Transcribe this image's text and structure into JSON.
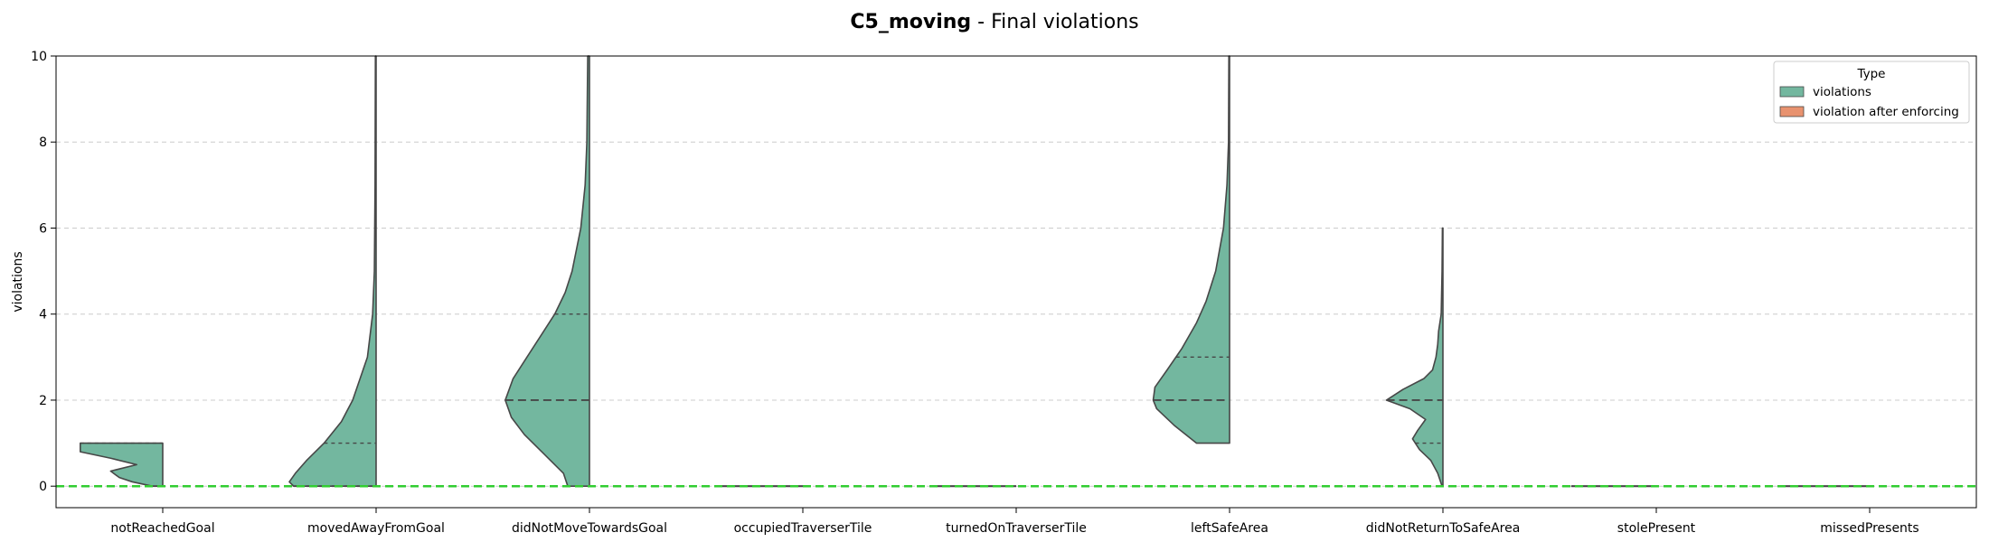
{
  "title": {
    "bold": "C5_moving",
    "rest": " - Final violations"
  },
  "colors": {
    "violations": "#73b79f",
    "after_enforcing": "#e8926f",
    "outline": "#474747",
    "zero_line": "#32cd32",
    "grid": "#cccccc"
  },
  "chart_data": {
    "type": "violin",
    "ylabel": "violations",
    "ylim": [
      -0.5,
      10
    ],
    "yticks": [
      0,
      2,
      4,
      6,
      8,
      10
    ],
    "grid": true,
    "categories": [
      "notReachedGoal",
      "movedAwayFromGoal",
      "didNotMoveTowardsGoal",
      "occupiedTraverserTile",
      "turnedOnTraverserTile",
      "leftSafeArea",
      "didNotReturnToSafeArea",
      "stolePresent",
      "missedPresents"
    ],
    "legend": {
      "title": "Type",
      "position": "top-right",
      "entries": [
        "violations",
        "violation after enforcing"
      ]
    },
    "reference_line": {
      "y": 0,
      "style": "dashed"
    },
    "series": [
      {
        "name": "violations",
        "side": "left",
        "violins": [
          {
            "min": 0,
            "max": 1,
            "median": 0,
            "quartiles": [
              0,
              1
            ],
            "profile": [
              [
                0,
                0.12
              ],
              [
                0.1,
                0.35
              ],
              [
                0.2,
                0.5
              ],
              [
                0.35,
                0.6
              ],
              [
                0.5,
                0.3
              ],
              [
                0.65,
                0.6
              ],
              [
                0.8,
                0.95
              ],
              [
                1,
                0.95
              ]
            ]
          },
          {
            "min": 0,
            "max": 10,
            "median": 0,
            "quartiles": [
              0,
              1
            ],
            "profile": [
              [
                0,
                0.95
              ],
              [
                0.1,
                1
              ],
              [
                0.3,
                0.93
              ],
              [
                0.6,
                0.8
              ],
              [
                1,
                0.6
              ],
              [
                1.5,
                0.4
              ],
              [
                2,
                0.27
              ],
              [
                3,
                0.1
              ],
              [
                4,
                0.04
              ],
              [
                5,
                0.02
              ],
              [
                7,
                0.012
              ],
              [
                10,
                0.008
              ]
            ]
          },
          {
            "min": 0,
            "max": 10,
            "median": 2,
            "quartiles": [
              2,
              4
            ],
            "profile": [
              [
                0,
                0.25
              ],
              [
                0.3,
                0.3
              ],
              [
                0.8,
                0.55
              ],
              [
                1.2,
                0.75
              ],
              [
                1.6,
                0.9
              ],
              [
                2,
                0.97
              ],
              [
                2.5,
                0.88
              ],
              [
                3,
                0.72
              ],
              [
                3.5,
                0.56
              ],
              [
                4,
                0.4
              ],
              [
                4.5,
                0.28
              ],
              [
                5,
                0.2
              ],
              [
                6,
                0.1
              ],
              [
                7,
                0.05
              ],
              [
                8,
                0.03
              ],
              [
                10,
                0.02
              ]
            ]
          },
          {
            "min": 0,
            "max": 0,
            "median": 0,
            "quartiles": [
              0,
              0
            ],
            "flat_width": 0.98
          },
          {
            "min": 0,
            "max": 0,
            "median": 0,
            "quartiles": [
              0,
              0
            ],
            "flat_width": 0.98
          },
          {
            "min": 1,
            "max": 10,
            "median": 2,
            "quartiles": [
              2,
              3
            ],
            "profile": [
              [
                1,
                0.38
              ],
              [
                1.4,
                0.63
              ],
              [
                1.8,
                0.84
              ],
              [
                2,
                0.88
              ],
              [
                2.3,
                0.86
              ],
              [
                2.7,
                0.72
              ],
              [
                3.2,
                0.55
              ],
              [
                3.8,
                0.38
              ],
              [
                4.3,
                0.27
              ],
              [
                5,
                0.16
              ],
              [
                6,
                0.07
              ],
              [
                7,
                0.03
              ],
              [
                8,
                0.012
              ],
              [
                10,
                0.008
              ]
            ]
          },
          {
            "min": 0,
            "max": 6,
            "median": 2,
            "quartiles": [
              1,
              2
            ],
            "profile": [
              [
                0,
                0.01
              ],
              [
                0.3,
                0.06
              ],
              [
                0.6,
                0.14
              ],
              [
                0.85,
                0.27
              ],
              [
                1.1,
                0.35
              ],
              [
                1.3,
                0.29
              ],
              [
                1.55,
                0.2
              ],
              [
                1.8,
                0.38
              ],
              [
                2,
                0.65
              ],
              [
                2.25,
                0.46
              ],
              [
                2.5,
                0.22
              ],
              [
                2.7,
                0.12
              ],
              [
                3,
                0.08
              ],
              [
                3.3,
                0.06
              ],
              [
                3.6,
                0.05
              ],
              [
                4,
                0.02
              ],
              [
                5,
                0.01
              ],
              [
                6,
                0.006
              ]
            ]
          },
          {
            "min": 0,
            "max": 0,
            "median": 0,
            "quartiles": [
              0,
              0
            ],
            "flat_width": 0.98
          },
          {
            "min": 0,
            "max": 0,
            "median": 0,
            "quartiles": [
              0,
              0
            ],
            "flat_width": 0.98
          }
        ]
      },
      {
        "name": "violation after enforcing",
        "side": "right",
        "violins": []
      }
    ]
  }
}
